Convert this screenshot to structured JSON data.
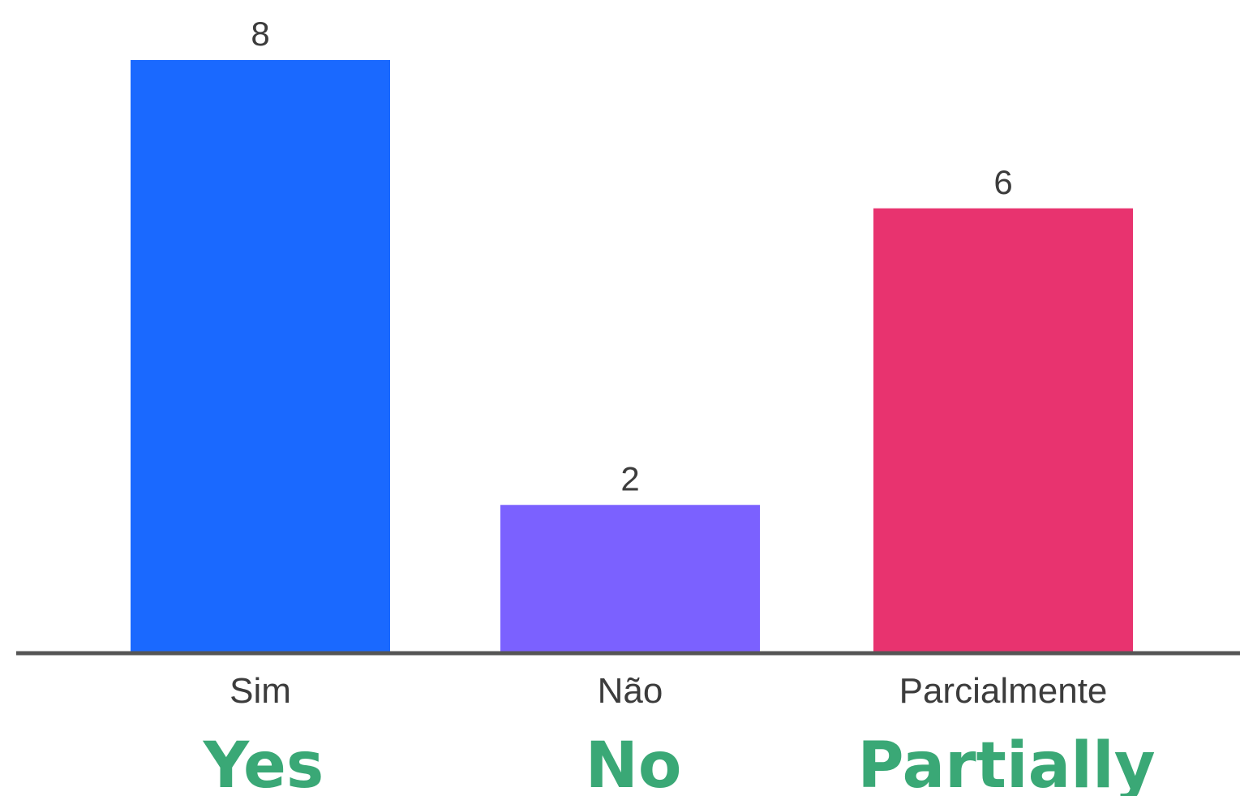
{
  "chart_data": {
    "type": "bar",
    "categories": [
      "Sim",
      "Não",
      "Parcialmente"
    ],
    "values": [
      8,
      2,
      6
    ],
    "colors": [
      "#1a69ff",
      "#7b61ff",
      "#e8336f"
    ],
    "translations": [
      "Yes",
      "No",
      "Partially"
    ],
    "translation_color": "#3aa876",
    "axis_color": "#555555",
    "ylim": [
      0,
      8
    ],
    "grid": false,
    "title": "",
    "xlabel": "",
    "ylabel": ""
  }
}
